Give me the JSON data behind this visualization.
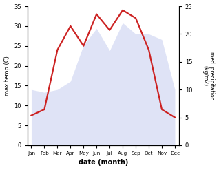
{
  "months": [
    "Jan",
    "Feb",
    "Mar",
    "Apr",
    "May",
    "Jun",
    "Jul",
    "Aug",
    "Sep",
    "Oct",
    "Nov",
    "Dec"
  ],
  "temperature": [
    7.5,
    9.0,
    24.0,
    30.0,
    25.0,
    33.0,
    29.0,
    34.0,
    32.0,
    24.0,
    9.0,
    7.0
  ],
  "precipitation": [
    10.0,
    9.5,
    10.0,
    11.5,
    18.0,
    21.0,
    17.0,
    22.0,
    20.0,
    20.0,
    19.0,
    10.0
  ],
  "temp_color": "#cc2222",
  "precip_fill_color": "#c5cdf0",
  "temp_ylim": [
    0,
    35
  ],
  "precip_ylim": [
    0,
    25
  ],
  "xlabel": "date (month)",
  "ylabel_left": "max temp (C)",
  "ylabel_right": "med. precipitation\n(kg/m2)",
  "bg_color": "#ffffff",
  "temp_linewidth": 1.6,
  "precip_alpha": 0.55
}
